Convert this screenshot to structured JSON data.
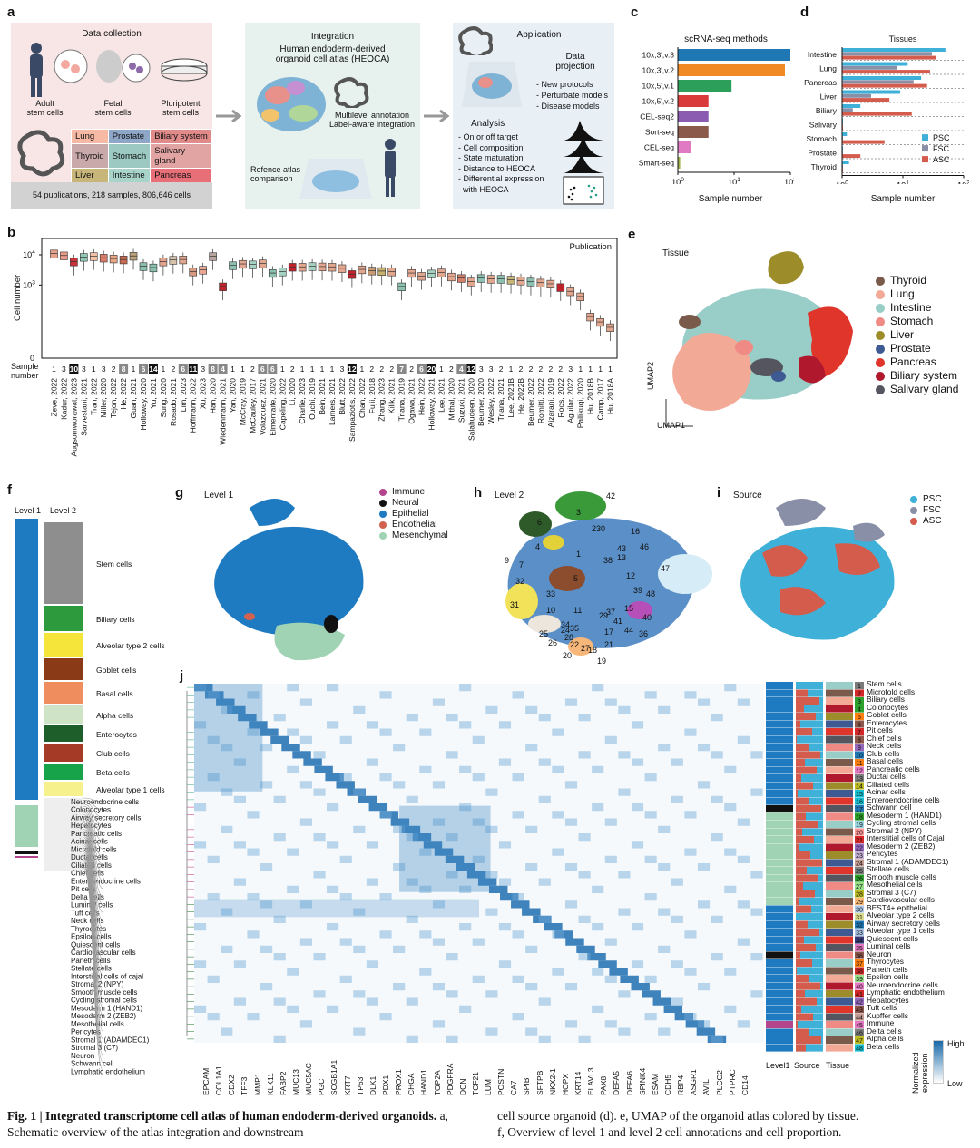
{
  "panel_labels": {
    "a": "a",
    "b": "b",
    "c": "c",
    "d": "d",
    "e": "e",
    "f": "f",
    "g": "g",
    "h": "h",
    "i": "i",
    "j": "j"
  },
  "panel_a": {
    "data_collection_title": "Data collection",
    "sources": [
      "Adult\nstem cells",
      "Fetal\nstem cells",
      "Pluripotent\nstem cells"
    ],
    "tissue_grid": [
      [
        "Lung",
        "Prostate",
        "Biliary system"
      ],
      [
        "Thyroid",
        "Stomach",
        "Salivary gland"
      ],
      [
        "Liver",
        "Intestine",
        "Pancreas"
      ]
    ],
    "tissue_colors": [
      [
        "#f5b9a4",
        "#8ea6c8",
        "#e08a8a"
      ],
      [
        "#c9a9a9",
        "#9cc9c1",
        "#e2a3a3"
      ],
      [
        "#c7b57a",
        "#a8d4c9",
        "#e86f77"
      ]
    ],
    "summary": "54 publications, 218 samples, 806,646 cells",
    "integration_title": "Integration",
    "integration_sub": "Human endoderm-derived\norganoid cell atlas (HEOCA)",
    "multilevel": "Multilevel annotation\nLabel-aware integration",
    "reference": "Refence atlas\ncomparison",
    "application_title": "Application",
    "data_projection": "Data\nprojection",
    "projection_items": [
      "- New protocols",
      "- Perturbate models",
      "- Disease models"
    ],
    "analysis_title": "Analysis",
    "analysis_items": [
      "- On or off target",
      "- Cell composition",
      "- State maturation",
      "- Distance to HEOCA",
      "- Differential expression",
      "  with HEOCA"
    ]
  },
  "chart_data": [
    {
      "id": "c",
      "type": "bar",
      "title": "scRNA-seq methods",
      "xlabel": "Sample number",
      "xscale": "log",
      "xlim": [
        1,
        100
      ],
      "xticks": [
        "10^0",
        "10^1",
        "10^2"
      ],
      "categories": [
        "10x,3',v.3",
        "10x,3',v.2",
        "10x,5',v.1",
        "10x,5',v.2",
        "CEL-seq2",
        "Sort-seq",
        "CEL-seq",
        "Smart-seq"
      ],
      "values": [
        100,
        80,
        9,
        3.5,
        3.5,
        3.5,
        1.7,
        1.1
      ],
      "colors": [
        "#1f77b4",
        "#f08a24",
        "#2ca05a",
        "#d93b3b",
        "#8a5bb0",
        "#8c5a4a",
        "#e07ac2",
        "#9fb04a"
      ]
    },
    {
      "id": "d",
      "type": "bar",
      "title": "Tissues",
      "xlabel": "Sample number",
      "xscale": "log",
      "xlim": [
        1,
        100
      ],
      "xticks": [
        "10^0",
        "10^1",
        "10^2"
      ],
      "categories": [
        "Intestine",
        "Lung",
        "Pancreas",
        "Liver",
        "Biliary",
        "Salivary",
        "Stomach",
        "Prostate",
        "Thyroid"
      ],
      "series": [
        {
          "name": "PSC",
          "color": "#3fb0d8",
          "values": [
            50,
            12,
            20,
            9,
            2,
            1,
            1.2,
            1,
            1.3
          ]
        },
        {
          "name": "FSC",
          "color": "#8a8fa8",
          "values": [
            30,
            8,
            15,
            3,
            1.5,
            1,
            1,
            1,
            1
          ]
        },
        {
          "name": "ASC",
          "color": "#d45c4c",
          "values": [
            35,
            28,
            25,
            6,
            14,
            1,
            5,
            2,
            1
          ]
        }
      ],
      "legend_loc": "bottom-right"
    },
    {
      "id": "b",
      "type": "box",
      "ylabel": "Cell number",
      "legend": "Publication",
      "yticks": [
        "0",
        "10^3",
        "10^4"
      ],
      "sample_label": "Sample\nnumber",
      "categories": [
        "Zeve, 2022",
        "Kadur, 2022",
        "Augsomworawat, 2023",
        "Sarvestani, 2021",
        "Tran, 2022",
        "Miller, 2020",
        "Tejon, 2022",
        "He, 2022",
        "Guan, 2021",
        "Holloway, 2020",
        "Yu, 2021",
        "Sung, 2020",
        "Rosado, 2021",
        "Lim, 2023",
        "Hoffmann, 2022",
        "Xu, 2023",
        "Han, 2020",
        "Wiedenmann, 2021",
        "Yan, 2020",
        "McCray, 2019",
        "McCauley, 2017",
        "Volazquez, 2021",
        "Elmentaite, 2020",
        "Capeling, 2022",
        "Li, 2020",
        "Charlie, 2023",
        "Ouchi, 2019",
        "Bein, 2021",
        "Lamers, 2021",
        "Blutt, 2022",
        "Sampaziotis, 2022",
        "Chan, 2022",
        "Fujii, 2018",
        "Zhang, 2023",
        "Kilik, 2021",
        "Triana, 2019",
        "Ogawa, 2021",
        "Hein, 2022",
        "Holloway, 2021",
        "Lee, 2021",
        "Mithal, 2020",
        "Suzuki, 2021",
        "Salahudeen, 2020",
        "Beumer, 2020",
        "Wesley, 2022",
        "Triana, 2021",
        "Lee, 2021B",
        "He, 2022B",
        "Beumer, 2022",
        "Romitti, 2022",
        "Aizarani, 2019",
        "Roos, 2022",
        "Aguilar, 2022",
        "Pallikuqi, 2020",
        "Hu, 2018B",
        "Camp, 2017",
        "Hu, 2018A"
      ],
      "sample_numbers": [
        "1",
        "3",
        "10",
        "3",
        "1",
        "3",
        "2",
        "8",
        "1",
        "6",
        "14",
        "1",
        "2",
        "6",
        "11",
        "3",
        "8",
        "4",
        "1",
        "1",
        "2",
        "6",
        "6",
        "1",
        "2",
        "1",
        "1",
        "1",
        "1",
        "3",
        "12",
        "1",
        "2",
        "2",
        "2",
        "7",
        "2",
        "6",
        "20",
        "1",
        "2",
        "4",
        "12",
        "3",
        "3",
        "2",
        "1",
        "2",
        "2",
        "2",
        "2",
        "2",
        "3",
        "1",
        "1",
        "1",
        "1"
      ],
      "medians": [
        11000,
        9500,
        6000,
        8500,
        9000,
        8000,
        7500,
        7000,
        9200,
        4200,
        3800,
        6000,
        6800,
        7000,
        2800,
        3200,
        9000,
        900,
        4500,
        5000,
        4800,
        5200,
        2500,
        2800,
        4000,
        4000,
        4200,
        4100,
        4000,
        3600,
        2300,
        3300,
        3000,
        2900,
        2800,
        900,
        2500,
        2000,
        2400,
        2600,
        1900,
        1700,
        1300,
        1700,
        1600,
        1600,
        1500,
        1400,
        1300,
        1200,
        1100,
        850,
        620,
        420,
        90,
        60,
        40
      ],
      "colors": [
        "#e9a38c",
        "#e99a8a",
        "#c8333a",
        "#91c7b5",
        "#f6c2a6",
        "#d97c6a",
        "#e8a785",
        "#c86a52",
        "#bba27a",
        "#8cc0b0",
        "#8cc0b0",
        "#e4a48d",
        "#d6c2a8",
        "#e3a78f",
        "#d69a82",
        "#eaa694",
        "#b8a5a0",
        "#c0232c",
        "#8cc0b0",
        "#e3a78f",
        "#a6d2c2",
        "#e3a78f",
        "#8cc0b0",
        "#a6d2c2",
        "#c0232c",
        "#e3a78f",
        "#a6d2c2",
        "#e3a78f",
        "#e3a78f",
        "#e3a78f",
        "#c0232c",
        "#e3a78f",
        "#c79a74",
        "#c8b070",
        "#e3a78f",
        "#8cc0b0",
        "#e3a78f",
        "#e3a78f",
        "#a6d2c2",
        "#e3a78f",
        "#e3a78f",
        "#d67f6b",
        "#e3a78f",
        "#8cc0b0",
        "#e3a78f",
        "#8cc0b0",
        "#c7b57a",
        "#e3a78f",
        "#8cc0b0",
        "#e3a78f",
        "#e3a78f",
        "#c0232c",
        "#e3a78f",
        "#e3a78f",
        "#e3a78f",
        "#e3a78f",
        "#e3a78f"
      ]
    }
  ],
  "panel_e": {
    "title": "Tissue",
    "legend": [
      [
        "Thyroid",
        "#7a5a4a"
      ],
      [
        "Lung",
        "#f2a996"
      ],
      [
        "Intestine",
        "#98cdc8"
      ],
      [
        "Stomach",
        "#f08a84"
      ],
      [
        "Liver",
        "#9c8c2a"
      ],
      [
        "Prostate",
        "#3e5a92"
      ],
      [
        "Pancreas",
        "#e0352b"
      ],
      [
        "Biliary system",
        "#b0182e"
      ],
      [
        "Salivary gland",
        "#555560"
      ]
    ],
    "axis_y": "UMAP2",
    "axis_x": "UMAP1"
  },
  "panel_f": {
    "col1": "Level 1",
    "col2": "Level 2",
    "level2_blocks": [
      [
        "Stem cells",
        "#8e8e8e"
      ],
      [
        "Biliary cells",
        "#2e9a3e"
      ],
      [
        "Alveolar type 2 cells",
        "#f5e43a"
      ],
      [
        "Goblet cells",
        "#8a3a16"
      ],
      [
        "Basal cells",
        "#ef8d5f"
      ],
      [
        "Alpha cells",
        "#cfe3c7"
      ],
      [
        "Enterocytes",
        "#1e5e2a"
      ],
      [
        "Club cells",
        "#a53a26"
      ],
      [
        "Beta cells",
        "#16a34a"
      ],
      [
        "Alveolar type 1 cells",
        "#f6f08d"
      ]
    ],
    "small_labels": [
      "Neuroendocrine cells",
      "Colonocytes",
      "Airway secretory cells",
      "Hepatocytes",
      "Pancreatic cells",
      "Acinar cells",
      "Microfold cells",
      "Ductal cells",
      "Ciliated cells",
      "Chief cells",
      "Enteroendocrine cells",
      "Pit cells",
      "Delta cells",
      "Luminal cells",
      "Tuft cells",
      "Neck cells",
      "Thyrocytes",
      "Epsilon cells",
      "Quiescent cells",
      "Cardiovascular cells",
      "Paneth cells",
      "Stellate cells",
      "Interstitial cells of cajal",
      "Stromal 2 (NPY)",
      "Smooth muscle cells",
      "Cycling stromal cells",
      "Mesoderm 1 (HAND1)",
      "Mesoderm 2 (ZEB2)",
      "Mesothelial cells",
      "Pericytes",
      "Stromal 1 (ADAMDEC1)",
      "Stromal 3 (C7)",
      "Neuron",
      "Schwann cell",
      "Lymphatic endothelium"
    ]
  },
  "panel_g": {
    "title": "Level 1",
    "legend": [
      [
        "Immune",
        "#b3458c"
      ],
      [
        "Neural",
        "#111111"
      ],
      [
        "Epithelial",
        "#1f7bc1"
      ],
      [
        "Endothelial",
        "#d2624f"
      ],
      [
        "Mesenchymal",
        "#9fd3b3"
      ]
    ]
  },
  "panel_h": {
    "title": "Level 2",
    "labels": [
      "42",
      "3",
      "230",
      "6",
      "16",
      "1",
      "38",
      "4",
      "43",
      "13",
      "46",
      "9",
      "7",
      "47",
      "12",
      "5",
      "32",
      "33",
      "39",
      "48",
      "40",
      "10",
      "11",
      "15",
      "31",
      "29",
      "37",
      "41",
      "34",
      "35",
      "44",
      "36",
      "25",
      "24",
      "28",
      "17",
      "26",
      "27",
      "22",
      "21",
      "18",
      "20",
      "19"
    ]
  },
  "panel_i": {
    "title": "Source",
    "legend": [
      [
        "PSC",
        "#3fb0d8"
      ],
      [
        "FSC",
        "#8a8fa8"
      ],
      [
        "ASC",
        "#d45c4c"
      ]
    ]
  },
  "panel_j": {
    "genes": [
      "EPCAM",
      "COL1A1",
      "CDX2",
      "TFF3",
      "MMP1",
      "KLK11",
      "FABP2",
      "MUC13",
      "MUC5AC",
      "PGC",
      "SCGB1A1",
      "KRT7",
      "TP63",
      "DLK1",
      "PDX1",
      "PROX1",
      "CHGA",
      "HAND1",
      "TOP2A",
      "PDGFRA",
      "DCN",
      "TCF21",
      "LUM",
      "POSTN",
      "CA7",
      "SPIB",
      "SFTPB",
      "NKX2-1",
      "HOPX",
      "KRT14",
      "ELAVL3",
      "PAX8",
      "DEFA5",
      "DEFA6",
      "SPINK4",
      "ESAM",
      "CDH5",
      "RBP4",
      "ASGR1",
      "AVIL",
      "PLCG2",
      "PTPRC",
      "CD14"
    ],
    "rows": [
      "Stem cells",
      "Microfold cells",
      "Biliary cells",
      "Colonocytes",
      "Goblet cells",
      "Enterocytes",
      "Pit cells",
      "Chief cells",
      "Neck cells",
      "Club cells",
      "Basal cells",
      "Pancreatic cells",
      "Ductal cells",
      "Ciliated cells",
      "Acinar cells",
      "Enteroendocrine cells",
      "Schwann cell",
      "Mesoderm 1 (HAND1)",
      "Cycling stromal cells",
      "Stromal 2 (NPY)",
      "Interstitial cells of Cajal",
      "Mesoderm 2 (ZEB2)",
      "Pericytes",
      "Stromal 1 (ADAMDEC1)",
      "Stellate cells",
      "Smooth muscle cells",
      "Mesothelial cells",
      "Stromal 3 (C7)",
      "Cardiovascular cells",
      "BEST4+ epithelial",
      "Alveolar type 2 cells",
      "Airway secretory cells",
      "Alveolar type 1 cells",
      "Quiescent cells",
      "Luminal cells",
      "Neuron",
      "Thyrocytes",
      "Paneth cells",
      "Epsilon cells",
      "Neuroendocrine cells",
      "Lymphatic endothelium",
      "Hepatocytes",
      "Tuft cells",
      "Kupffer cells",
      "Immune",
      "Delta cells",
      "Alpha cells",
      "Beta cells"
    ],
    "row_colors": [
      "#7a7a7a",
      "#d62728",
      "#2ca02c",
      "#2ca02c",
      "#ff7f0e",
      "#8c564b",
      "#d62728",
      "#8c564b",
      "#9467bd",
      "#1f77b4",
      "#ff7f0e",
      "#e377c2",
      "#7f7f7f",
      "#bcbd22",
      "#17becf",
      "#17becf",
      "#1f77b4",
      "#2ca02c",
      "#9edae5",
      "#ff9896",
      "#d62728",
      "#9467bd",
      "#c5b0d5",
      "#c49c94",
      "#7f7f7f",
      "#2ca02c",
      "#98df8a",
      "#bcbd22",
      "#ffbb78",
      "#aec7e8",
      "#dbdb8d",
      "#1f77b4",
      "#aec7e8",
      "#393b79",
      "#e377c2",
      "#8c564b",
      "#ff7f0e",
      "#d62728",
      "#98df8a",
      "#e377c2",
      "#d62728",
      "#9467bd",
      "#8c564b",
      "#c49c94",
      "#e377c2",
      "#7f7f7f",
      "#bcbd22",
      "#17becf"
    ],
    "col_labels": [
      "Level1",
      "Source",
      "Tissue"
    ],
    "scale_title": "Normalized\nexpression",
    "scale_high": "High",
    "scale_low": "Low"
  },
  "caption": {
    "left_bold": "Fig. 1 | Integrated transcriptome cell atlas of human endoderm-derived organoids.",
    "left_rest": " a, Schematic overview of the atlas integration and downstream",
    "right_1": "cell source organoid (d). e, UMAP of the organoid atlas colored by tissue.",
    "right_2": "f, Overview of level 1 and level 2 cell annotations and cell proportion."
  }
}
